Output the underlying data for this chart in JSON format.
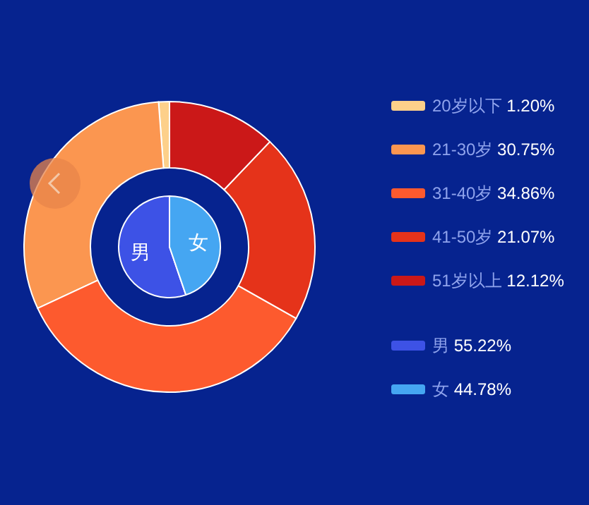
{
  "chart_data": [
    {
      "type": "donut",
      "legend": "right",
      "categories": [
        "20岁以下",
        "21-30岁",
        "31-40岁",
        "41-50岁",
        "51岁以上"
      ],
      "values": [
        1.2,
        30.75,
        34.86,
        21.07,
        12.12
      ],
      "value_labels": [
        "1.20%",
        "30.75%",
        "34.86%",
        "21.07%",
        "12.12%"
      ],
      "colors": [
        "#fdd08a",
        "#fb9650",
        "#fd5a2e",
        "#e5331a",
        "#cb1818"
      ]
    },
    {
      "type": "pie",
      "legend": "right",
      "categories": [
        "男",
        "女"
      ],
      "values": [
        55.22,
        44.78
      ],
      "value_labels": [
        "55.22%",
        "44.78%"
      ],
      "colors": [
        "#3d52e6",
        "#45a6f2"
      ]
    }
  ]
}
